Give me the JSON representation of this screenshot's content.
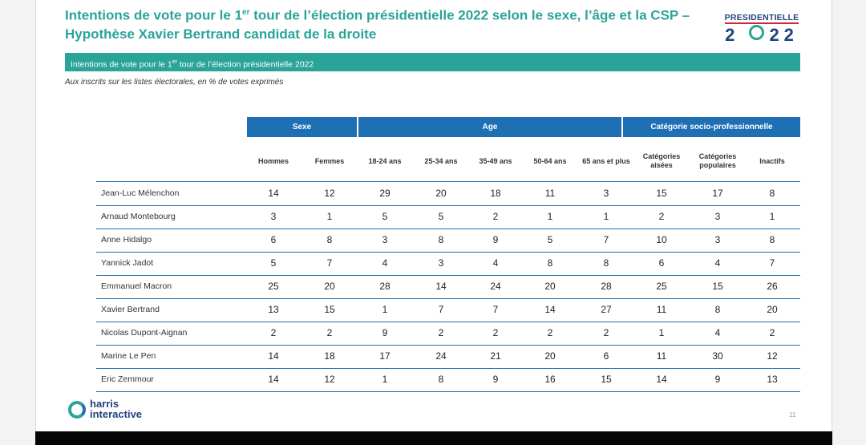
{
  "title": {
    "part1": "Intentions de vote pour le 1",
    "sup": "er",
    "part2": " tour de l’élection présidentielle 2022 selon le sexe, l’âge et la CSP – Hypothèse Xavier Bertrand candidat de la droite"
  },
  "logo": {
    "top": "PRESIDENTIELLE",
    "year_a": "2",
    "year_b": "22"
  },
  "band": {
    "part1": "Intentions de vote pour le 1",
    "sup": "er",
    "part2": " tour de l’élection présidentielle 2022"
  },
  "subtitle": "Aux inscrits sur les listes électorales, en % de votes exprimés",
  "groups": [
    {
      "label": "Sexe"
    },
    {
      "label": "Age"
    },
    {
      "label": "Catégorie socio-professionnelle"
    }
  ],
  "columns": [
    "Hommes",
    "Femmes",
    "18-24 ans",
    "25-34 ans",
    "35-49 ans",
    "50-64 ans",
    "65 ans et plus",
    "Catégories aisées",
    "Catégories populaires",
    "Inactifs"
  ],
  "rows": [
    {
      "name": "Jean-Luc Mélenchon",
      "values": [
        "14",
        "12",
        "29",
        "20",
        "18",
        "11",
        "3",
        "15",
        "17",
        "8"
      ]
    },
    {
      "name": "Arnaud Montebourg",
      "values": [
        "3",
        "1",
        "5",
        "5",
        "2",
        "1",
        "1",
        "2",
        "3",
        "1"
      ]
    },
    {
      "name": "Anne Hidalgo",
      "values": [
        "6",
        "8",
        "3",
        "8",
        "9",
        "5",
        "7",
        "10",
        "3",
        "8"
      ]
    },
    {
      "name": "Yannick Jadot",
      "values": [
        "5",
        "7",
        "4",
        "3",
        "4",
        "8",
        "8",
        "6",
        "4",
        "7"
      ]
    },
    {
      "name": "Emmanuel Macron",
      "values": [
        "25",
        "20",
        "28",
        "14",
        "24",
        "20",
        "28",
        "25",
        "15",
        "26"
      ]
    },
    {
      "name": "Xavier Bertrand",
      "values": [
        "13",
        "15",
        "1",
        "7",
        "7",
        "14",
        "27",
        "11",
        "8",
        "20"
      ]
    },
    {
      "name": "Nicolas Dupont-Aignan",
      "values": [
        "2",
        "2",
        "9",
        "2",
        "2",
        "2",
        "2",
        "1",
        "4",
        "2"
      ]
    },
    {
      "name": "Marine Le Pen",
      "values": [
        "14",
        "18",
        "17",
        "24",
        "21",
        "20",
        "6",
        "11",
        "30",
        "12"
      ]
    },
    {
      "name": "Eric Zemmour",
      "values": [
        "14",
        "12",
        "1",
        "8",
        "9",
        "16",
        "15",
        "14",
        "9",
        "13"
      ]
    }
  ],
  "footer": {
    "brand_line1": "harris",
    "brand_line2": "interactive",
    "page": "11"
  },
  "colors": {
    "teal": "#2aa398",
    "blue": "#1f6fb5",
    "navy": "#23417f",
    "red": "#d0263a"
  }
}
